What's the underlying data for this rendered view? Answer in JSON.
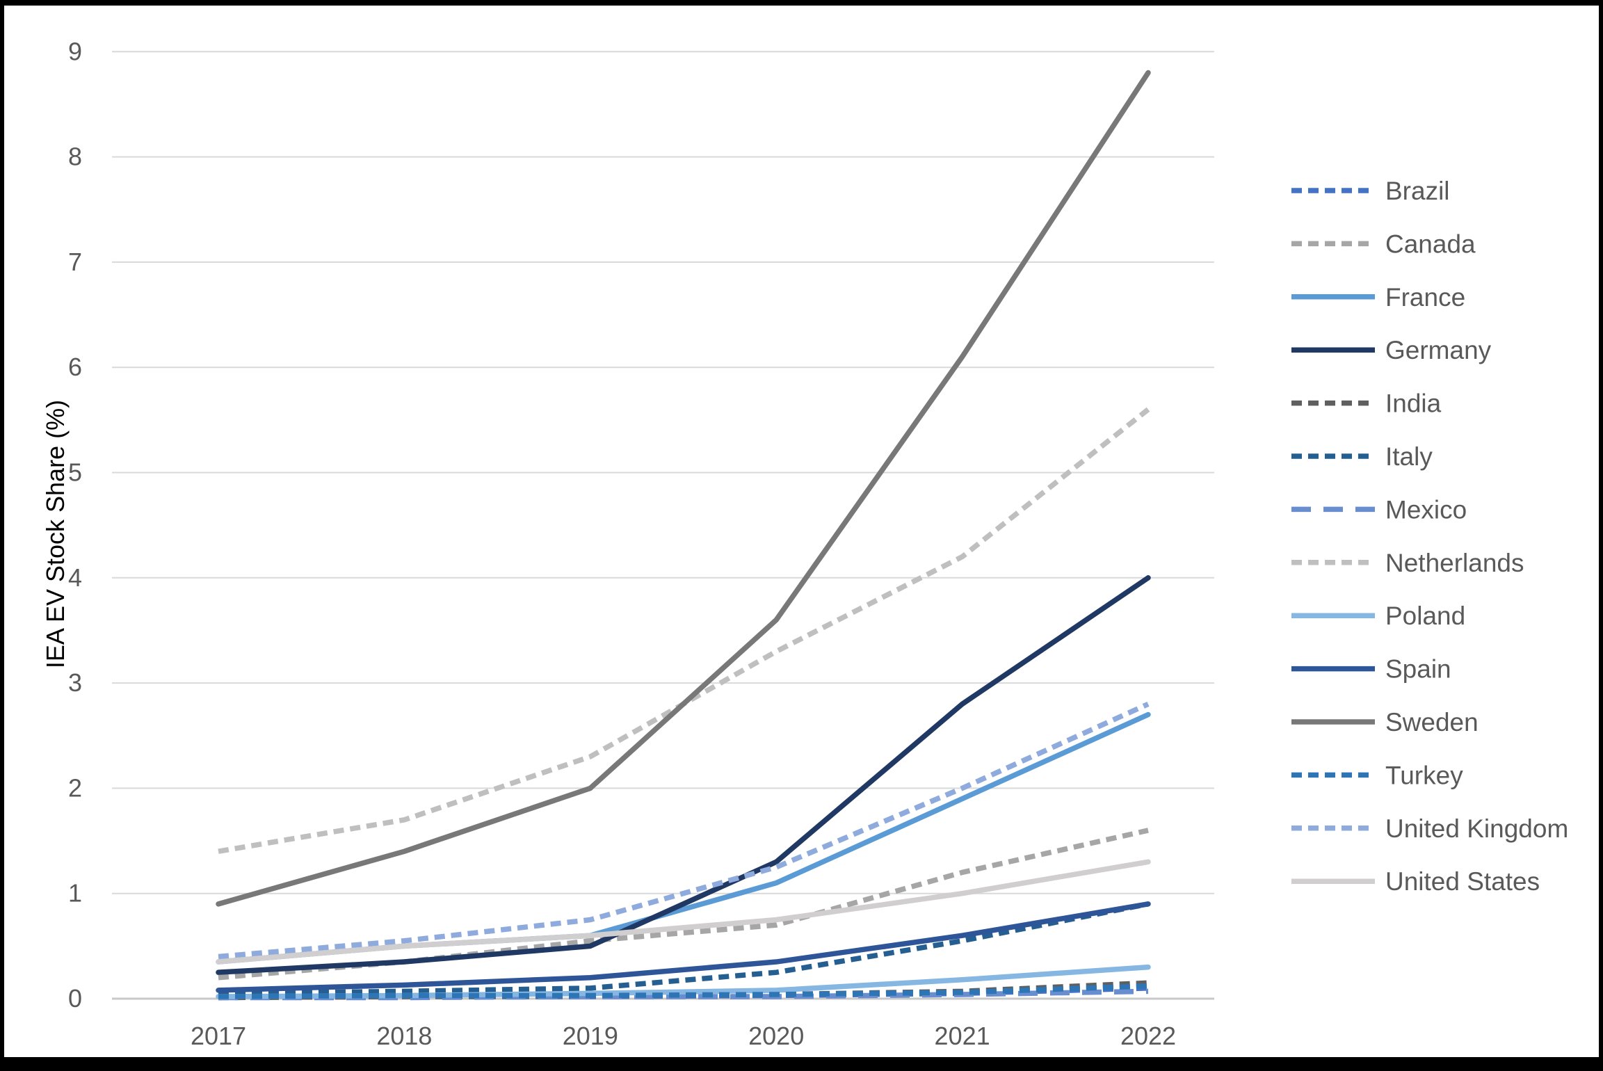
{
  "chart_data": {
    "type": "line",
    "title": "",
    "xlabel": "",
    "ylabel": "IEA EV Stock Share (%)",
    "x": [
      "2017",
      "2018",
      "2019",
      "2020",
      "2021",
      "2022"
    ],
    "ylim": [
      0,
      9
    ],
    "yticks": [
      0,
      1,
      2,
      3,
      4,
      5,
      6,
      7,
      8,
      9
    ],
    "grid": true,
    "legend_position": "right",
    "axis_text_color": "#595959",
    "gridline_color": "#d9d9d9",
    "baseline_color": "#c9c9c9",
    "series": [
      {
        "name": "Brazil",
        "color": "#4472c4",
        "dash": "dash",
        "values": [
          0.01,
          0.02,
          0.02,
          0.03,
          0.05,
          0.1
        ]
      },
      {
        "name": "Canada",
        "color": "#a6a6a6",
        "dash": "dash",
        "values": [
          0.2,
          0.35,
          0.55,
          0.7,
          1.2,
          1.6
        ]
      },
      {
        "name": "France",
        "color": "#5b9bd5",
        "dash": "solid",
        "values": [
          0.35,
          0.5,
          0.6,
          1.1,
          1.9,
          2.7
        ]
      },
      {
        "name": "Germany",
        "color": "#203864",
        "dash": "solid",
        "values": [
          0.25,
          0.35,
          0.5,
          1.3,
          2.8,
          4.0
        ]
      },
      {
        "name": "India",
        "color": "#5f5f5f",
        "dash": "dash",
        "values": [
          0.01,
          0.02,
          0.03,
          0.04,
          0.07,
          0.15
        ]
      },
      {
        "name": "Italy",
        "color": "#255e91",
        "dash": "dash",
        "values": [
          0.05,
          0.07,
          0.1,
          0.25,
          0.55,
          0.9
        ]
      },
      {
        "name": "Mexico",
        "color": "#698ed0",
        "dash": "longdash",
        "values": [
          0.01,
          0.01,
          0.02,
          0.02,
          0.04,
          0.07
        ]
      },
      {
        "name": "Netherlands",
        "color": "#bfbfbf",
        "dash": "dash",
        "values": [
          1.4,
          1.7,
          2.3,
          3.3,
          4.2,
          5.6
        ]
      },
      {
        "name": "Poland",
        "color": "#85b7e2",
        "dash": "solid",
        "values": [
          0.02,
          0.03,
          0.05,
          0.08,
          0.18,
          0.3
        ]
      },
      {
        "name": "Spain",
        "color": "#2e5597",
        "dash": "solid",
        "values": [
          0.08,
          0.13,
          0.2,
          0.35,
          0.6,
          0.9
        ]
      },
      {
        "name": "Sweden",
        "color": "#787878",
        "dash": "solid",
        "values": [
          0.9,
          1.4,
          2.0,
          3.6,
          6.1,
          8.8
        ]
      },
      {
        "name": "Turkey",
        "color": "#2e75b6",
        "dash": "dash",
        "values": [
          0.02,
          0.03,
          0.03,
          0.04,
          0.06,
          0.12
        ]
      },
      {
        "name": "United Kingdom",
        "color": "#8faadc",
        "dash": "dash",
        "values": [
          0.4,
          0.55,
          0.75,
          1.25,
          2.0,
          2.8
        ]
      },
      {
        "name": "United States",
        "color": "#d0cece",
        "dash": "solid",
        "values": [
          0.35,
          0.5,
          0.6,
          0.75,
          1.0,
          1.3
        ]
      }
    ]
  }
}
